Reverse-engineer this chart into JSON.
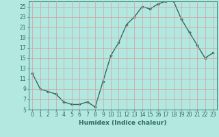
{
  "x": [
    0,
    1,
    2,
    3,
    4,
    5,
    6,
    7,
    8,
    9,
    10,
    11,
    12,
    13,
    14,
    15,
    16,
    17,
    18,
    19,
    20,
    21,
    22,
    23
  ],
  "y": [
    12,
    9,
    8.5,
    8,
    6.5,
    6,
    6,
    6.5,
    5.5,
    10.5,
    15.5,
    18,
    21.5,
    23,
    25,
    24.5,
    25.5,
    26,
    26,
    22.5,
    20,
    17.5,
    15,
    16
  ],
  "line_color": "#2e6b5e",
  "marker": "D",
  "marker_size": 1.8,
  "bg_color": "#b3e8e0",
  "grid_color": "#d4a0a0",
  "xlabel": "Humidex (Indice chaleur)",
  "ylim": [
    5,
    26
  ],
  "xlim": [
    -0.5,
    23.5
  ],
  "yticks": [
    5,
    7,
    9,
    11,
    13,
    15,
    17,
    19,
    21,
    23,
    25
  ],
  "xticks": [
    0,
    1,
    2,
    3,
    4,
    5,
    6,
    7,
    8,
    9,
    10,
    11,
    12,
    13,
    14,
    15,
    16,
    17,
    18,
    19,
    20,
    21,
    22,
    23
  ],
  "tick_fontsize": 5.5,
  "xlabel_fontsize": 6.5,
  "line_width": 1.0
}
